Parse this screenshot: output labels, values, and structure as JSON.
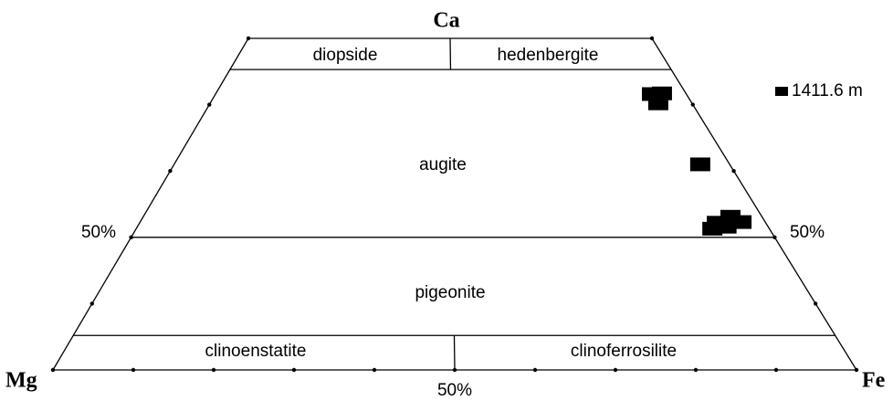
{
  "chart_data": {
    "type": "ternary",
    "vertices": {
      "top": "Ca",
      "left": "Mg",
      "right": "Fe"
    },
    "regions": [
      "diopside",
      "hedenbergite",
      "augite",
      "pigeonite",
      "clinoenstatite",
      "clinoferrosilite"
    ],
    "annotations": [
      "50%",
      "50%",
      "50%"
    ],
    "xlim": [
      0,
      100
    ],
    "ylim": [
      0,
      50
    ],
    "xticks": [
      0,
      10,
      20,
      30,
      40,
      50,
      60,
      70,
      80,
      90,
      100
    ],
    "yticks": [
      10,
      20,
      30,
      40
    ],
    "divisions": [
      45.3,
      20,
      5.2
    ],
    "divider": 50,
    "series": [
      {
        "name": "1411.6 m",
        "color": "#000000",
        "x": [
          92.7,
          94.9,
          93.0,
          94.7,
          94.9,
          96.2,
          92.2,
          91.0,
          93.4
        ],
        "values": [
          41.6,
          41.7,
          40.2,
          31.0,
          23.1,
          22.3,
          22.2,
          21.3,
          21.6
        ]
      }
    ]
  }
}
